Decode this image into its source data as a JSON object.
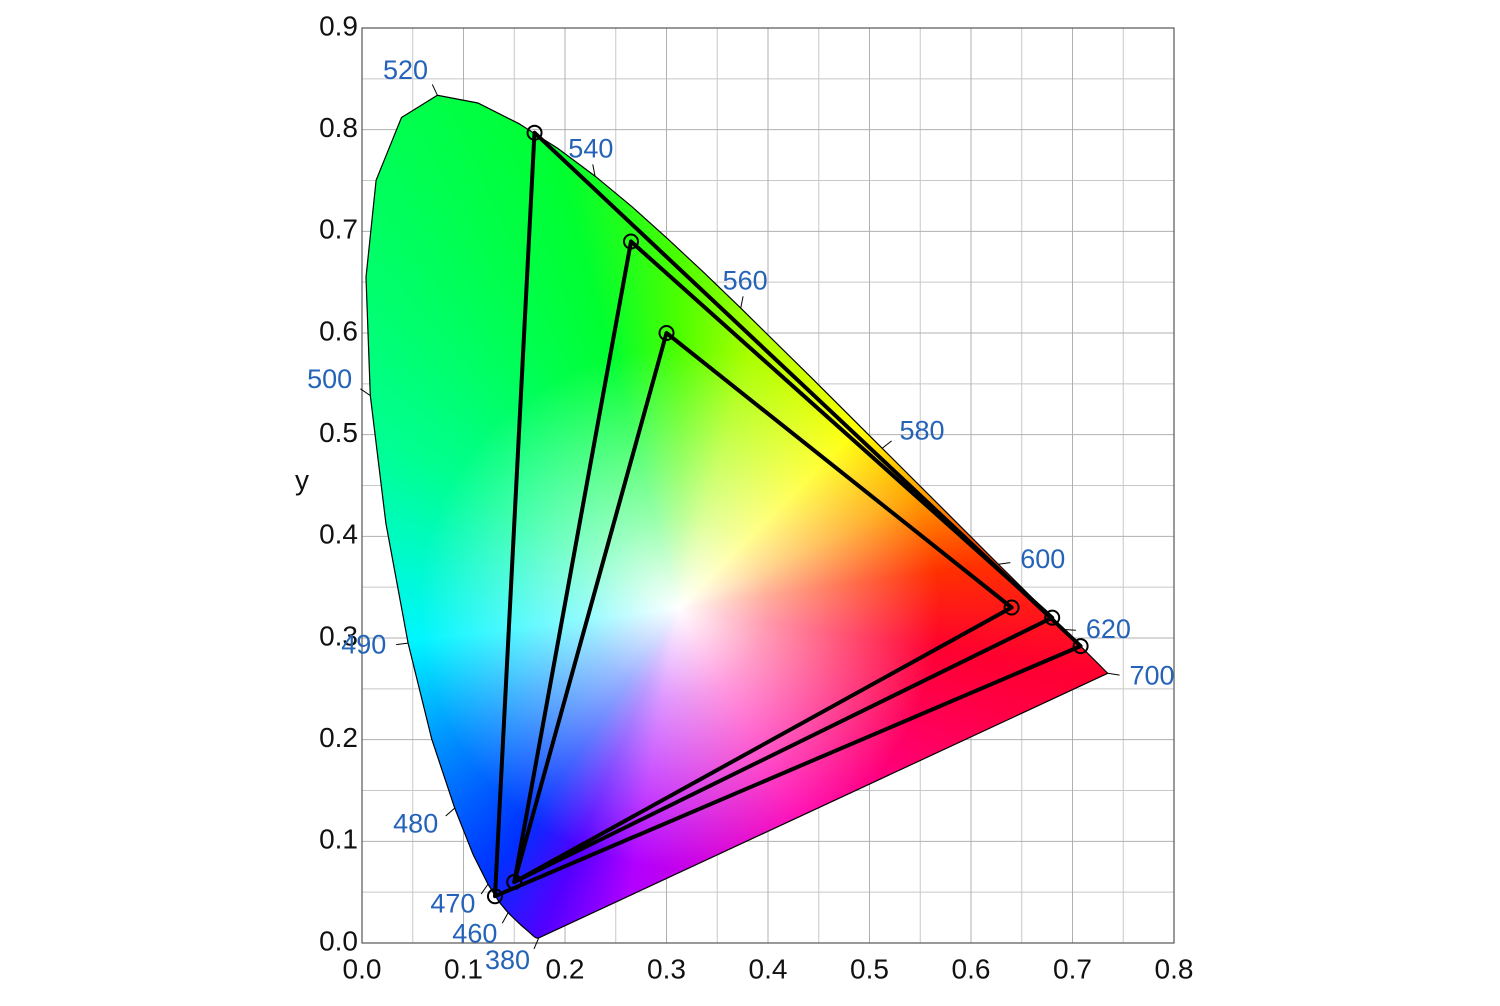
{
  "chart_data": {
    "type": "chromaticity",
    "ylabel": "y",
    "xlim": [
      0,
      0.8
    ],
    "ylim": [
      0,
      0.9
    ],
    "xticks": [
      {
        "value": 0,
        "label": "0.0"
      },
      0.1,
      0.2,
      0.3,
      0.4,
      0.5,
      0.6,
      0.7,
      0.8
    ],
    "yticks": [
      {
        "value": 0,
        "label": "0.0"
      },
      0.1,
      0.2,
      0.3,
      0.4,
      0.5,
      0.6,
      0.7,
      0.8,
      0.9
    ],
    "x_minor_grid": [
      0.05,
      0.15,
      0.25,
      0.35,
      0.45,
      0.55,
      0.65,
      0.75
    ],
    "y_minor_grid": [
      0.05,
      0.15,
      0.25,
      0.35,
      0.45,
      0.55,
      0.65,
      0.75,
      0.85
    ],
    "grid": true,
    "locus": {
      "color": "#000000",
      "x": [
        0.1741,
        0.1733,
        0.1714,
        0.1689,
        0.1644,
        0.1566,
        0.144,
        0.1355,
        0.1241,
        0.1096,
        0.0913,
        0.0687,
        0.0454,
        0.0235,
        0.0082,
        0.0039,
        0.0139,
        0.0389,
        0.0743,
        0.1142,
        0.1547,
        0.1929,
        0.2296,
        0.2658,
        0.3016,
        0.3373,
        0.3731,
        0.4441,
        0.5125,
        0.5752,
        0.627,
        0.6658,
        0.6915,
        0.7079,
        0.719,
        0.726,
        0.73,
        0.7334,
        0.7347
      ],
      "y": [
        0.005,
        0.0048,
        0.0051,
        0.0069,
        0.0109,
        0.0177,
        0.0297,
        0.0399,
        0.0578,
        0.0868,
        0.1327,
        0.2007,
        0.295,
        0.4127,
        0.5384,
        0.6548,
        0.7502,
        0.812,
        0.8338,
        0.8262,
        0.8059,
        0.7816,
        0.7543,
        0.7243,
        0.6923,
        0.6589,
        0.6245,
        0.5547,
        0.4866,
        0.4242,
        0.3725,
        0.334,
        0.3083,
        0.292,
        0.2809,
        0.274,
        0.27,
        0.2666,
        0.2653
      ]
    },
    "wavelength_labels": [
      {
        "nm": 380,
        "x": 0.1741,
        "y": 0.005
      },
      {
        "nm": 460,
        "x": 0.144,
        "y": 0.0297
      },
      {
        "nm": 470,
        "x": 0.1241,
        "y": 0.0578
      },
      {
        "nm": 480,
        "x": 0.0913,
        "y": 0.1327
      },
      {
        "nm": 490,
        "x": 0.0454,
        "y": 0.295
      },
      {
        "nm": 500,
        "x": 0.0082,
        "y": 0.5384
      },
      {
        "nm": 520,
        "x": 0.0743,
        "y": 0.8338
      },
      {
        "nm": 540,
        "x": 0.2296,
        "y": 0.7543
      },
      {
        "nm": 560,
        "x": 0.3731,
        "y": 0.6245
      },
      {
        "nm": 580,
        "x": 0.5125,
        "y": 0.4866
      },
      {
        "nm": 600,
        "x": 0.627,
        "y": 0.3725
      },
      {
        "nm": 620,
        "x": 0.6915,
        "y": 0.3083
      },
      {
        "nm": 700,
        "x": 0.7347,
        "y": 0.2653
      }
    ],
    "gamuts": [
      {
        "color": "#000000",
        "x": [
          0.708,
          0.17,
          0.131
        ],
        "y": [
          0.292,
          0.797,
          0.046
        ]
      },
      {
        "color": "#000000",
        "x": [
          0.68,
          0.265,
          0.15
        ],
        "y": [
          0.32,
          0.69,
          0.06
        ]
      },
      {
        "color": "#000000",
        "x": [
          0.64,
          0.3,
          0.15
        ],
        "y": [
          0.33,
          0.6,
          0.06
        ]
      }
    ]
  }
}
